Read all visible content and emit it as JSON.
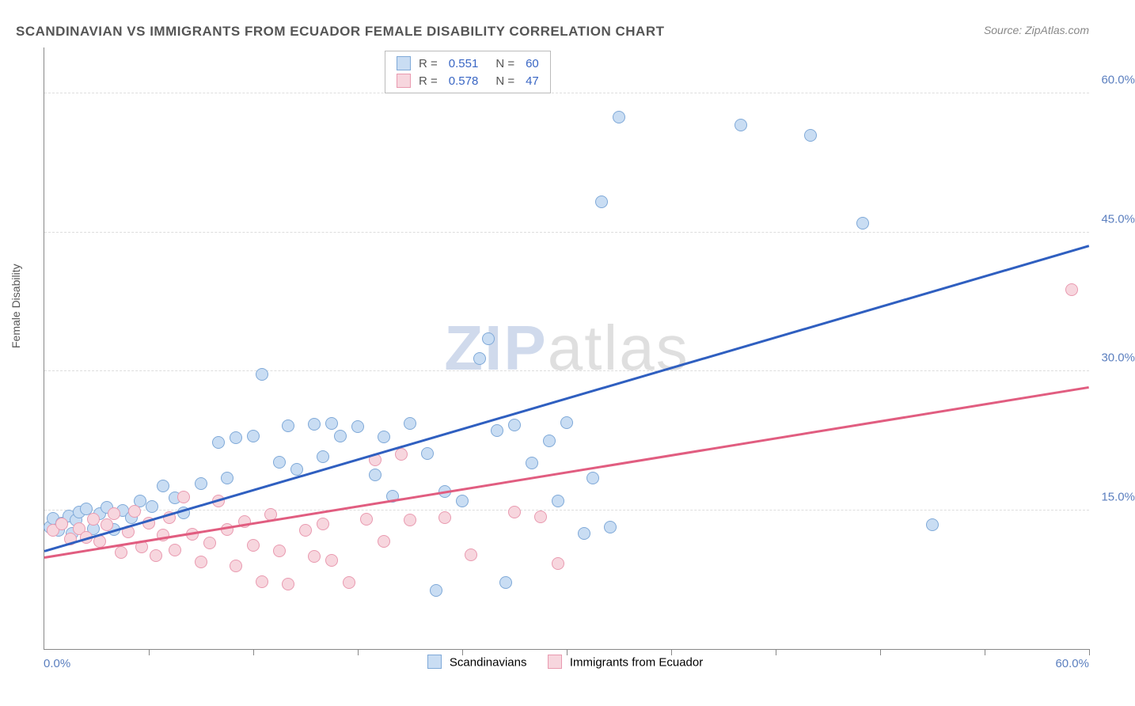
{
  "title": "SCANDINAVIAN VS IMMIGRANTS FROM ECUADOR FEMALE DISABILITY CORRELATION CHART",
  "source": "Source: ZipAtlas.com",
  "y_axis_title": "Female Disability",
  "watermark": {
    "part1": "ZIP",
    "part2": "atlas"
  },
  "chart": {
    "type": "scatter",
    "x_domain": [
      0,
      60
    ],
    "y_domain": [
      0,
      65
    ],
    "x_ticks": [
      0,
      6,
      12,
      18,
      24,
      30,
      36,
      42,
      48,
      54,
      60
    ],
    "x_tick_labels": {
      "first": "0.0%",
      "last": "60.0%"
    },
    "y_gridlines": [
      15,
      30,
      45,
      60
    ],
    "y_tick_labels": [
      "15.0%",
      "30.0%",
      "45.0%",
      "60.0%"
    ],
    "background_color": "#ffffff",
    "grid_color": "#dddddd",
    "axis_color": "#888888",
    "tick_label_color": "#5b7fbf",
    "marker_radius": 8,
    "marker_border_width": 1,
    "series": [
      {
        "id": "scandinavians",
        "label": "Scandinavians",
        "fill": "#c9ddf3",
        "stroke": "#7fa9d8",
        "R": "0.551",
        "N": "60",
        "trend": {
          "x1": 0,
          "y1": 10.5,
          "x2": 60,
          "y2": 43.5,
          "color": "#2f5fc0",
          "width": 2.5
        },
        "points": [
          [
            0.3,
            13.2
          ],
          [
            0.5,
            14.1
          ],
          [
            0.8,
            12.8
          ],
          [
            1.0,
            13.6
          ],
          [
            1.4,
            14.4
          ],
          [
            1.6,
            12.5
          ],
          [
            1.8,
            13.9
          ],
          [
            2.0,
            14.8
          ],
          [
            2.4,
            15.1
          ],
          [
            2.8,
            13.0
          ],
          [
            3.2,
            14.6
          ],
          [
            3.6,
            15.3
          ],
          [
            4.0,
            12.9
          ],
          [
            4.5,
            15.0
          ],
          [
            5.0,
            14.2
          ],
          [
            5.5,
            16.0
          ],
          [
            6.2,
            15.4
          ],
          [
            6.8,
            17.6
          ],
          [
            7.5,
            16.3
          ],
          [
            8.0,
            14.7
          ],
          [
            9.0,
            17.9
          ],
          [
            10.0,
            22.3
          ],
          [
            10.5,
            18.5
          ],
          [
            11.0,
            22.8
          ],
          [
            12.0,
            23.0
          ],
          [
            12.5,
            29.7
          ],
          [
            13.5,
            20.2
          ],
          [
            14.0,
            24.1
          ],
          [
            14.5,
            19.4
          ],
          [
            15.5,
            24.3
          ],
          [
            16.0,
            20.8
          ],
          [
            16.5,
            24.4
          ],
          [
            17.0,
            23.0
          ],
          [
            18.0,
            24.0
          ],
          [
            19.0,
            18.8
          ],
          [
            19.5,
            22.9
          ],
          [
            20.0,
            16.5
          ],
          [
            21.0,
            24.4
          ],
          [
            22.0,
            21.1
          ],
          [
            22.5,
            6.3
          ],
          [
            23.0,
            17.0
          ],
          [
            24.0,
            16.0
          ],
          [
            25.0,
            31.4
          ],
          [
            25.5,
            33.5
          ],
          [
            26.0,
            23.6
          ],
          [
            26.5,
            7.2
          ],
          [
            27.0,
            24.2
          ],
          [
            28.0,
            20.1
          ],
          [
            29.0,
            22.5
          ],
          [
            29.5,
            16.0
          ],
          [
            30.0,
            24.5
          ],
          [
            31.0,
            12.5
          ],
          [
            31.5,
            18.5
          ],
          [
            32.0,
            48.3
          ],
          [
            32.5,
            13.2
          ],
          [
            33.0,
            57.5
          ],
          [
            40.0,
            56.6
          ],
          [
            44.0,
            55.5
          ],
          [
            47.0,
            46.0
          ],
          [
            51.0,
            13.4
          ]
        ]
      },
      {
        "id": "ecuador",
        "label": "Immigrants from Ecuador",
        "fill": "#f7d6de",
        "stroke": "#e99ab0",
        "R": "0.578",
        "N": "47",
        "trend": {
          "x1": 0,
          "y1": 9.8,
          "x2": 60,
          "y2": 28.2,
          "color": "#e15d80",
          "width": 2.5
        },
        "points": [
          [
            0.5,
            12.8
          ],
          [
            1.0,
            13.5
          ],
          [
            1.5,
            11.9
          ],
          [
            2.0,
            13.0
          ],
          [
            2.4,
            12.1
          ],
          [
            2.8,
            14.0
          ],
          [
            3.2,
            11.6
          ],
          [
            3.6,
            13.4
          ],
          [
            4.0,
            14.6
          ],
          [
            4.4,
            10.4
          ],
          [
            4.8,
            12.7
          ],
          [
            5.2,
            14.9
          ],
          [
            5.6,
            11.0
          ],
          [
            6.0,
            13.6
          ],
          [
            6.4,
            10.1
          ],
          [
            6.8,
            12.3
          ],
          [
            7.2,
            14.2
          ],
          [
            7.5,
            10.7
          ],
          [
            8.0,
            16.4
          ],
          [
            8.5,
            12.4
          ],
          [
            9.0,
            9.4
          ],
          [
            9.5,
            11.5
          ],
          [
            10.0,
            16.0
          ],
          [
            10.5,
            12.9
          ],
          [
            11.0,
            9.0
          ],
          [
            11.5,
            13.8
          ],
          [
            12.0,
            11.2
          ],
          [
            12.5,
            7.3
          ],
          [
            13.0,
            14.5
          ],
          [
            13.5,
            10.6
          ],
          [
            14.0,
            7.0
          ],
          [
            15.0,
            12.8
          ],
          [
            15.5,
            10.0
          ],
          [
            16.0,
            13.5
          ],
          [
            16.5,
            9.6
          ],
          [
            17.5,
            7.2
          ],
          [
            18.5,
            14.0
          ],
          [
            19.0,
            20.4
          ],
          [
            19.5,
            11.6
          ],
          [
            20.5,
            21.0
          ],
          [
            21.0,
            13.9
          ],
          [
            23.0,
            14.2
          ],
          [
            24.5,
            10.2
          ],
          [
            27.0,
            14.8
          ],
          [
            28.5,
            14.3
          ],
          [
            29.5,
            9.2
          ],
          [
            59.0,
            38.8
          ]
        ]
      }
    ]
  },
  "legend_top_labels": {
    "R": "R  =",
    "N": "N  ="
  },
  "legend_bottom": [
    "Scandinavians",
    "Immigrants from Ecuador"
  ]
}
